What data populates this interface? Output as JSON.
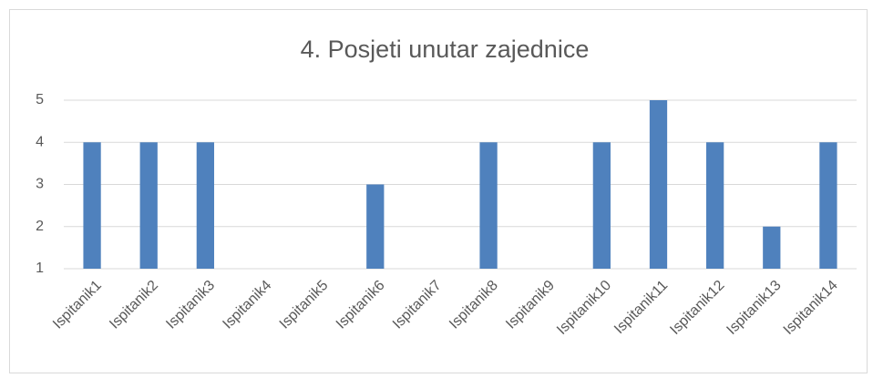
{
  "chart_data": {
    "type": "bar",
    "title": "4. Posjeti unutar zajednice",
    "categories": [
      "Ispitanik1",
      "Ispitanik2",
      "Ispitanik3",
      "Ispitanik4",
      "Ispitanik5",
      "Ispitanik6",
      "Ispitanik7",
      "Ispitanik8",
      "Ispitanik9",
      "Ispitanik10",
      "Ispitanik11",
      "Ispitanik12",
      "Ispitanik13",
      "Ispitanik14"
    ],
    "values": [
      4,
      4,
      4,
      1,
      1,
      3,
      1,
      4,
      1,
      4,
      5,
      4,
      2,
      4
    ],
    "color": "#4f81bd",
    "ylim": [
      1,
      5
    ],
    "yticks": [
      1,
      2,
      3,
      4,
      5
    ],
    "grid": true
  }
}
